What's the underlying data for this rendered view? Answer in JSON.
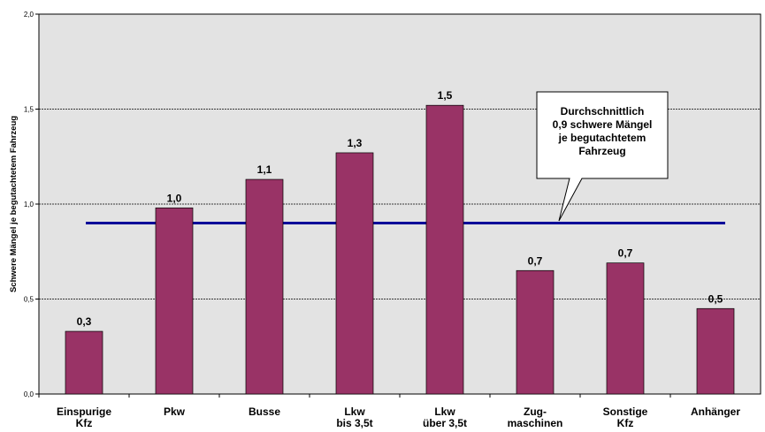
{
  "chart_data": {
    "type": "bar",
    "title": "",
    "xlabel": "",
    "ylabel": "Schwere Mängel je begutachtetem  Fahrzeug",
    "ylim": [
      0,
      2.0
    ],
    "yticks": [
      "0,0",
      "0,5",
      "1,0",
      "1,5",
      "2,0"
    ],
    "grid": true,
    "categories": [
      [
        "Einspurige",
        "Kfz"
      ],
      [
        "Pkw"
      ],
      [
        "Busse"
      ],
      [
        "Lkw",
        "bis 3,5t"
      ],
      [
        "Lkw",
        "über 3,5t"
      ],
      [
        "Zug-",
        "maschinen"
      ],
      [
        "Sonstige",
        "Kfz"
      ],
      [
        "Anhänger"
      ]
    ],
    "values": [
      0.33,
      0.98,
      1.13,
      1.27,
      1.52,
      0.65,
      0.69,
      0.45
    ],
    "data_labels": [
      "0,3",
      "1,0",
      "1,1",
      "1,3",
      "1,5",
      "0,7",
      "0,7",
      "0,5"
    ],
    "reference_line": {
      "value": 0.9,
      "color": "#000099"
    },
    "annotation": {
      "lines": [
        "Durchschnittlich",
        "0,9 schwere Mängel",
        "je begutachtetem",
        "Fahrzeug"
      ]
    },
    "colors": {
      "bar": "#993366",
      "plot_background": "#e3e3e3",
      "reference_line": "#000099"
    }
  }
}
